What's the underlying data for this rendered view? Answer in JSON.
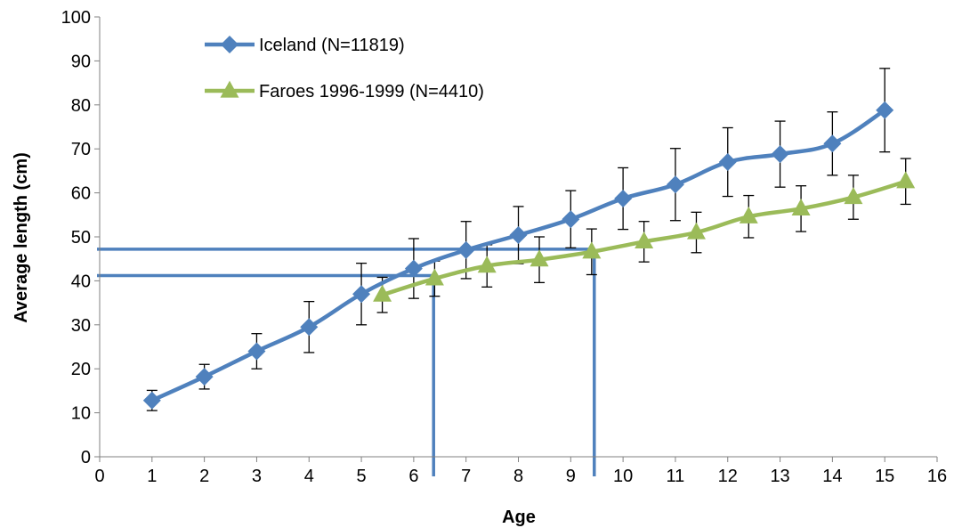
{
  "chart_data": {
    "type": "line",
    "title": "",
    "xlabel": "Age",
    "ylabel": "Average length (cm)",
    "xlim": [
      0,
      16
    ],
    "ylim": [
      0,
      100
    ],
    "x_ticks": [
      "0",
      "1",
      "2",
      "3",
      "4",
      "5",
      "6",
      "7",
      "8",
      "9",
      "10",
      "11",
      "12",
      "13",
      "14",
      "15",
      "16"
    ],
    "y_ticks": [
      "0",
      "10",
      "20",
      "30",
      "40",
      "50",
      "60",
      "70",
      "80",
      "90",
      "100"
    ],
    "grid": false,
    "legend_position": "top-left",
    "series": [
      {
        "name": "Iceland (N=11819)",
        "color": "#4F81BD",
        "marker": "diamond",
        "x": [
          1,
          2,
          3,
          4,
          5,
          6,
          7,
          8,
          9,
          10,
          11,
          12,
          13,
          14,
          15
        ],
        "y": [
          12.8,
          18.2,
          24.0,
          29.5,
          37.0,
          42.8,
          47.0,
          50.4,
          54.0,
          58.7,
          61.9,
          67.0,
          68.8,
          71.2,
          78.8
        ],
        "error": [
          2.3,
          2.8,
          4.0,
          5.8,
          7.0,
          6.8,
          6.5,
          6.5,
          6.5,
          7.0,
          8.2,
          7.8,
          7.5,
          7.2,
          9.5
        ]
      },
      {
        "name": "Faroes 1996-1999 (N=4410)",
        "color": "#9BBB59",
        "marker": "triangle",
        "x": [
          5.4,
          6.4,
          7.4,
          8.4,
          9.4,
          10.4,
          11.4,
          12.4,
          13.4,
          14.4,
          15.4
        ],
        "y": [
          36.8,
          40.5,
          43.4,
          44.8,
          46.6,
          48.9,
          51.0,
          54.6,
          56.4,
          59.0,
          62.6
        ],
        "error": [
          4.0,
          4.0,
          4.8,
          5.2,
          5.2,
          4.6,
          4.6,
          4.8,
          5.2,
          5.0,
          5.2
        ]
      }
    ],
    "reference_lines": [
      {
        "color": "#4F81BD",
        "y": 47.2,
        "x": 9.45
      },
      {
        "color": "#4F81BD",
        "y": 41.2,
        "x": 6.38
      }
    ]
  }
}
